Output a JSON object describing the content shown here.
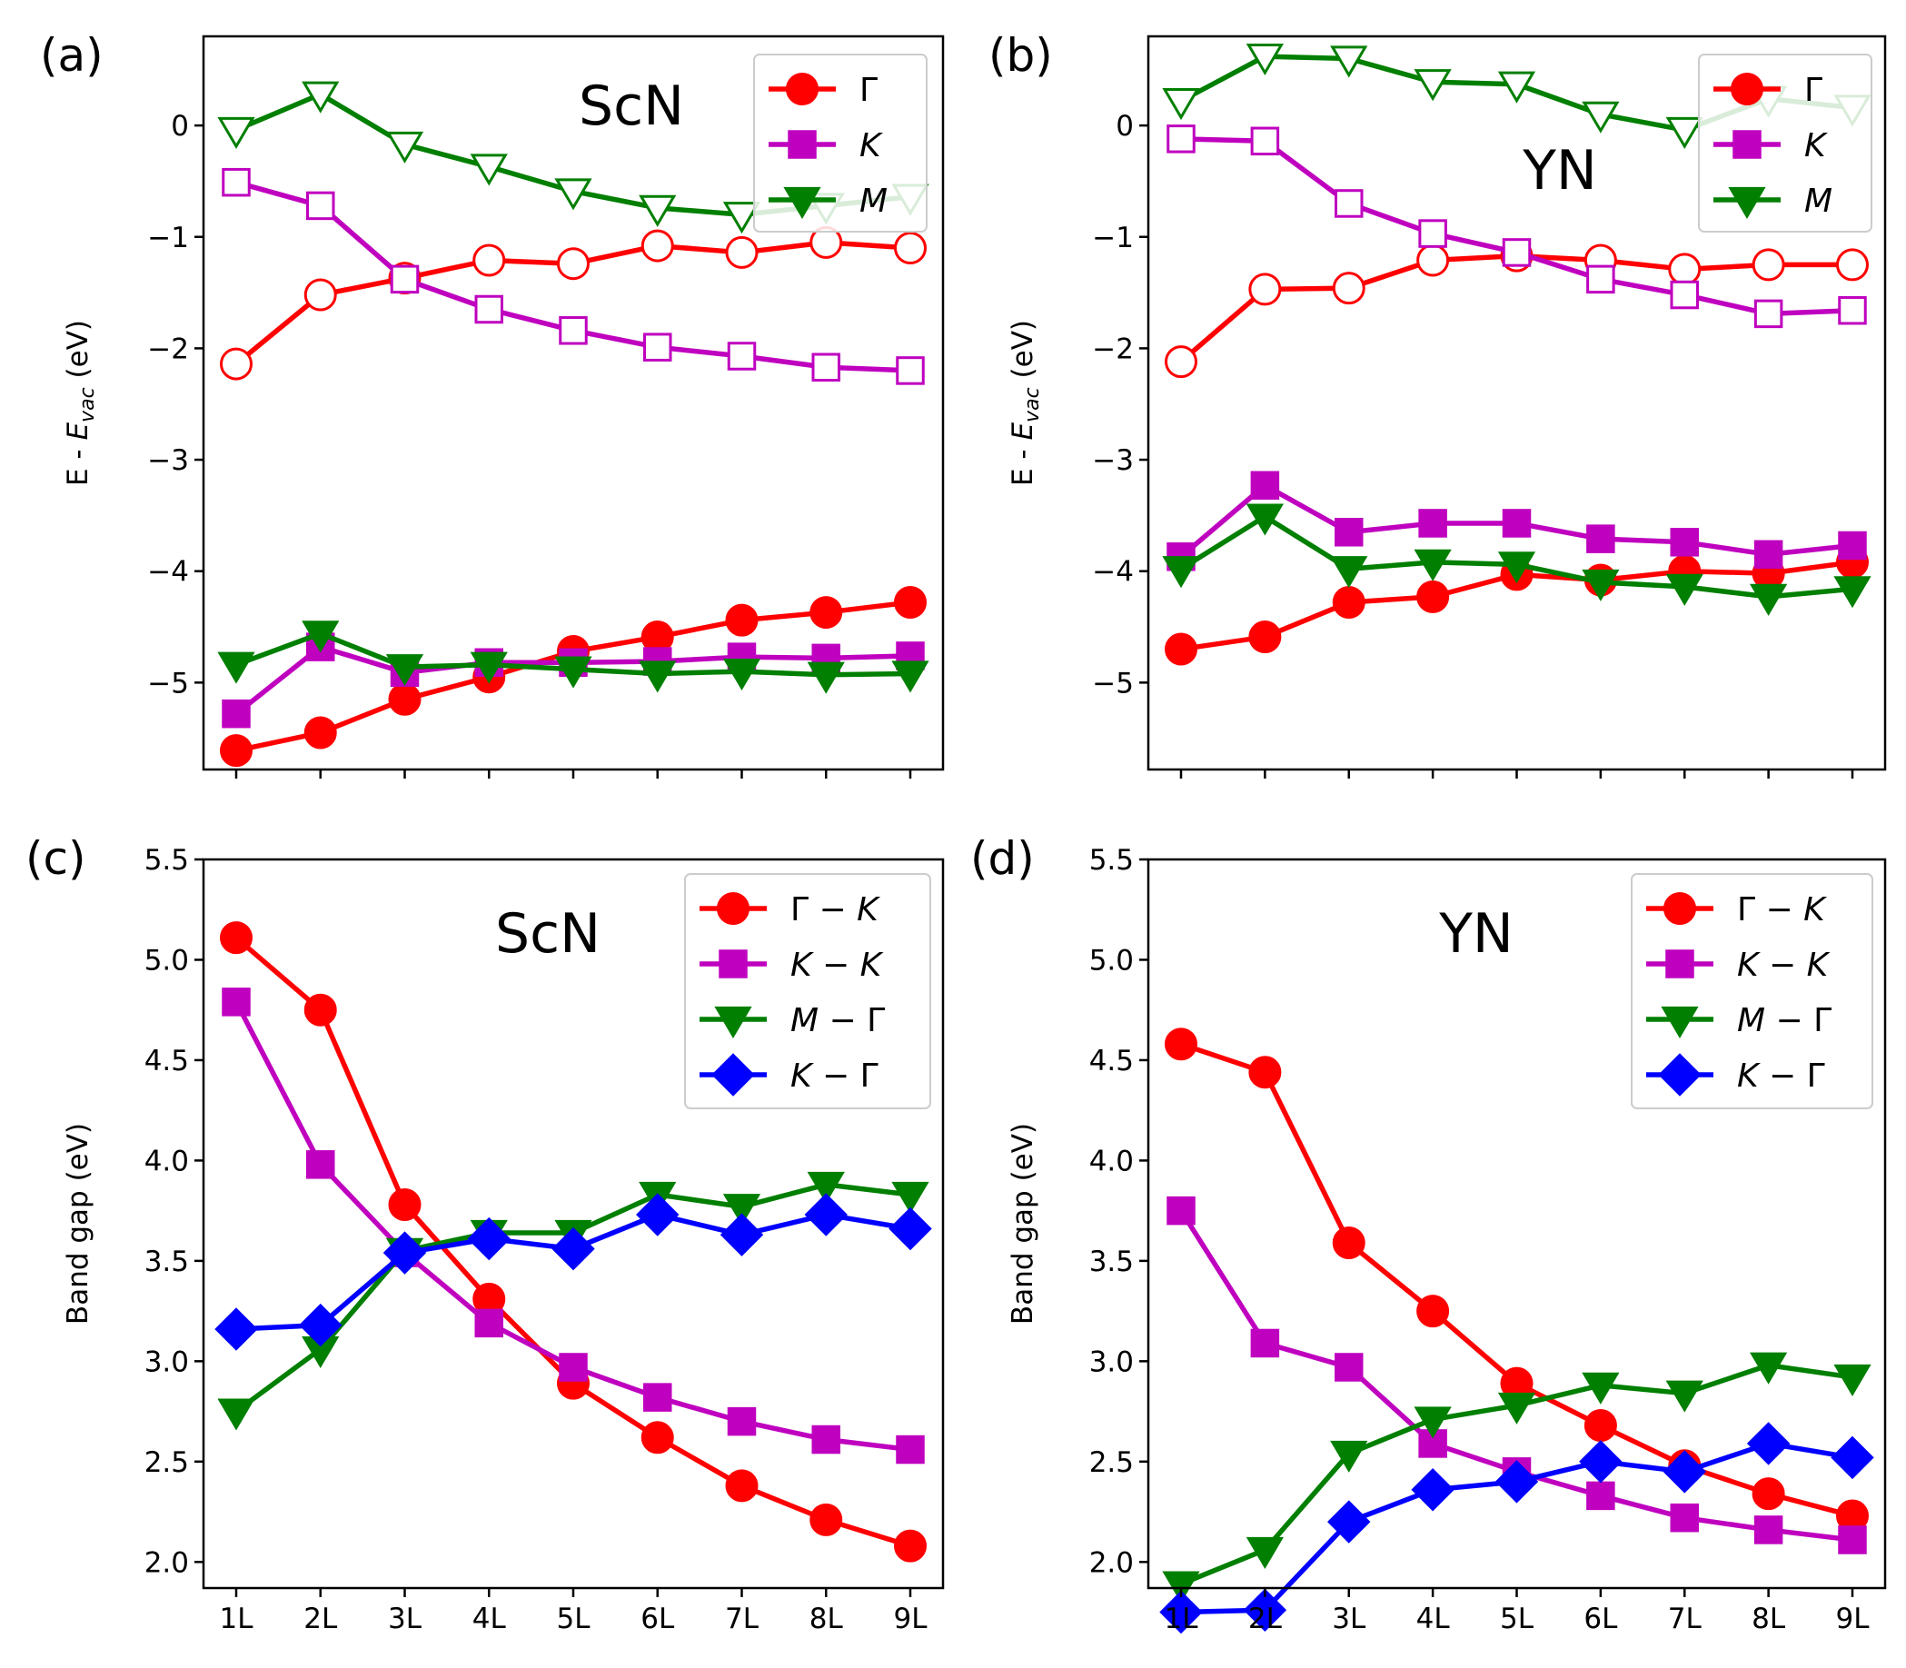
{
  "colors": {
    "red": "#ff0000",
    "magenta": "#bf00bf",
    "green": "#007f00",
    "blue": "#0000ff"
  },
  "chart_data": [
    {
      "panel": "(a)",
      "title": "ScN",
      "type": "line",
      "ylabel": "E - E_vac (eV)",
      "ylabel_main": "E - ",
      "ylabel_italic": "E",
      "ylabel_sub": "vac",
      "ylabel_unit": " (eV)",
      "ylim": [
        -5.78,
        0.8
      ],
      "yticks": [
        0,
        -1,
        -2,
        -3,
        -4,
        -5
      ],
      "ytick_labels": [
        "0",
        "−1",
        "−2",
        "−3",
        "−4",
        "−5"
      ],
      "categories": [
        "1L",
        "2L",
        "3L",
        "4L",
        "5L",
        "6L",
        "7L",
        "8L",
        "9L"
      ],
      "show_xtick_labels": false,
      "legend": [
        {
          "label": "Γ",
          "color": "red",
          "marker": "circle",
          "italic": false
        },
        {
          "label": "K",
          "color": "magenta",
          "marker": "square",
          "italic": true
        },
        {
          "label": "M",
          "color": "green",
          "marker": "triangle-down",
          "italic": true
        }
      ],
      "series": [
        {
          "name": "Γ (upper)",
          "color": "red",
          "marker": "circle",
          "fill": "none",
          "values": [
            -2.14,
            -1.52,
            -1.37,
            -1.21,
            -1.24,
            -1.08,
            -1.14,
            -1.05,
            -1.1
          ]
        },
        {
          "name": "K (upper)",
          "color": "magenta",
          "marker": "square",
          "fill": "none",
          "values": [
            -0.51,
            -0.72,
            -1.38,
            -1.65,
            -1.84,
            -1.99,
            -2.07,
            -2.17,
            -2.2
          ]
        },
        {
          "name": "M (upper)",
          "color": "green",
          "marker": "triangle-down",
          "fill": "none",
          "values": [
            -0.04,
            0.28,
            -0.17,
            -0.37,
            -0.59,
            -0.74,
            -0.8,
            -0.72,
            -0.64
          ]
        },
        {
          "name": "Γ (lower)",
          "color": "red",
          "marker": "circle",
          "fill": "solid",
          "values": [
            -5.61,
            -5.45,
            -5.15,
            -4.95,
            -4.72,
            -4.59,
            -4.44,
            -4.37,
            -4.28
          ]
        },
        {
          "name": "K (lower)",
          "color": "magenta",
          "marker": "square",
          "fill": "solid",
          "values": [
            -5.28,
            -4.68,
            -4.91,
            -4.82,
            -4.82,
            -4.81,
            -4.77,
            -4.78,
            -4.76
          ]
        },
        {
          "name": "M (lower)",
          "color": "green",
          "marker": "triangle-down",
          "fill": "solid",
          "values": [
            -4.84,
            -4.56,
            -4.86,
            -4.84,
            -4.88,
            -4.92,
            -4.9,
            -4.93,
            -4.92
          ]
        }
      ]
    },
    {
      "panel": "(b)",
      "title": "YN",
      "type": "line",
      "ylabel": "E - E_vac (eV)",
      "ylabel_main": "E - ",
      "ylabel_italic": "E",
      "ylabel_sub": "vac",
      "ylabel_unit": " (eV)",
      "ylim": [
        -5.78,
        0.8
      ],
      "yticks": [
        0,
        -1,
        -2,
        -3,
        -4,
        -5
      ],
      "ytick_labels": [
        "0",
        "−1",
        "−2",
        "−3",
        "−4",
        "−5"
      ],
      "categories": [
        "1L",
        "2L",
        "3L",
        "4L",
        "5L",
        "6L",
        "7L",
        "8L",
        "9L"
      ],
      "show_xtick_labels": false,
      "legend": [
        {
          "label": "Γ",
          "color": "red",
          "marker": "circle",
          "italic": false
        },
        {
          "label": "K",
          "color": "magenta",
          "marker": "square",
          "italic": true
        },
        {
          "label": "M",
          "color": "green",
          "marker": "triangle-down",
          "italic": true
        }
      ],
      "series": [
        {
          "name": "Γ (upper)",
          "color": "red",
          "marker": "circle",
          "fill": "none",
          "values": [
            -2.12,
            -1.47,
            -1.46,
            -1.21,
            -1.17,
            -1.21,
            -1.29,
            -1.25,
            -1.25
          ]
        },
        {
          "name": "K (upper)",
          "color": "magenta",
          "marker": "square",
          "fill": "none",
          "values": [
            -0.12,
            -0.14,
            -0.7,
            -0.97,
            -1.14,
            -1.38,
            -1.52,
            -1.69,
            -1.66
          ]
        },
        {
          "name": "M (upper)",
          "color": "green",
          "marker": "triangle-down",
          "fill": "none",
          "values": [
            0.22,
            0.62,
            0.6,
            0.39,
            0.37,
            0.1,
            -0.04,
            0.24,
            0.16
          ]
        },
        {
          "name": "Γ (lower)",
          "color": "red",
          "marker": "circle",
          "fill": "solid",
          "values": [
            -4.7,
            -4.59,
            -4.28,
            -4.23,
            -4.03,
            -4.08,
            -4.0,
            -4.02,
            -3.92
          ]
        },
        {
          "name": "K (lower)",
          "color": "magenta",
          "marker": "square",
          "fill": "solid",
          "values": [
            -3.87,
            -3.23,
            -3.65,
            -3.57,
            -3.57,
            -3.71,
            -3.74,
            -3.85,
            -3.77
          ]
        },
        {
          "name": "M (lower)",
          "color": "green",
          "marker": "triangle-down",
          "fill": "solid",
          "values": [
            -3.98,
            -3.51,
            -3.98,
            -3.92,
            -3.94,
            -4.1,
            -4.14,
            -4.23,
            -4.16
          ]
        }
      ]
    },
    {
      "panel": "(c)",
      "title": "ScN",
      "type": "line",
      "ylabel": "Band gap (eV)",
      "ylim": [
        1.87,
        5.5
      ],
      "yticks": [
        2.0,
        2.5,
        3.0,
        3.5,
        4.0,
        4.5,
        5.0,
        5.5
      ],
      "ytick_labels": [
        "2.0",
        "2.5",
        "3.0",
        "3.5",
        "4.0",
        "4.5",
        "5.0",
        "5.5"
      ],
      "categories": [
        "1L",
        "2L",
        "3L",
        "4L",
        "5L",
        "6L",
        "7L",
        "8L",
        "9L"
      ],
      "show_xtick_labels": true,
      "legend": [
        {
          "label": "Γ − K",
          "color": "red",
          "marker": "circle",
          "italic": true
        },
        {
          "label": "K − K",
          "color": "magenta",
          "marker": "square",
          "italic": true
        },
        {
          "label": "M − Γ",
          "color": "green",
          "marker": "triangle-down",
          "italic": true
        },
        {
          "label": "K − Γ",
          "color": "blue",
          "marker": "diamond",
          "italic": true
        }
      ],
      "series": [
        {
          "name": "Γ − K",
          "color": "red",
          "marker": "circle",
          "fill": "solid",
          "values": [
            5.11,
            4.75,
            3.78,
            3.31,
            2.89,
            2.62,
            2.38,
            2.21,
            2.08
          ]
        },
        {
          "name": "K − K",
          "color": "magenta",
          "marker": "square",
          "fill": "solid",
          "values": [
            4.79,
            3.98,
            3.54,
            3.19,
            2.97,
            2.82,
            2.7,
            2.61,
            2.56
          ]
        },
        {
          "name": "M − Γ",
          "color": "green",
          "marker": "triangle-down",
          "fill": "solid",
          "values": [
            2.75,
            3.06,
            3.55,
            3.64,
            3.64,
            3.83,
            3.77,
            3.88,
            3.83
          ]
        },
        {
          "name": "K − Γ",
          "color": "blue",
          "marker": "diamond",
          "fill": "solid",
          "values": [
            3.16,
            3.18,
            3.54,
            3.61,
            3.56,
            3.73,
            3.63,
            3.73,
            3.66
          ]
        }
      ]
    },
    {
      "panel": "(d)",
      "title": "YN",
      "type": "line",
      "ylabel": "Band gap (eV)",
      "ylim": [
        1.87,
        5.5
      ],
      "yticks": [
        2.0,
        2.5,
        3.0,
        3.5,
        4.0,
        4.5,
        5.0,
        5.5
      ],
      "ytick_labels": [
        "2.0",
        "2.5",
        "3.0",
        "3.5",
        "4.0",
        "4.5",
        "5.0",
        "5.5"
      ],
      "categories": [
        "1L",
        "2L",
        "3L",
        "4L",
        "5L",
        "6L",
        "7L",
        "8L",
        "9L"
      ],
      "show_xtick_labels": true,
      "legend": [
        {
          "label": "Γ − K",
          "color": "red",
          "marker": "circle",
          "italic": true
        },
        {
          "label": "K − K",
          "color": "magenta",
          "marker": "square",
          "italic": true
        },
        {
          "label": "M − Γ",
          "color": "green",
          "marker": "triangle-down",
          "italic": true
        },
        {
          "label": "K − Γ",
          "color": "blue",
          "marker": "diamond",
          "italic": true
        }
      ],
      "series": [
        {
          "name": "Γ − K",
          "color": "red",
          "marker": "circle",
          "fill": "solid",
          "values": [
            4.58,
            4.44,
            3.59,
            3.25,
            2.89,
            2.68,
            2.48,
            2.34,
            2.23
          ]
        },
        {
          "name": "K − K",
          "color": "magenta",
          "marker": "square",
          "fill": "solid",
          "values": [
            3.75,
            3.09,
            2.97,
            2.59,
            2.45,
            2.33,
            2.22,
            2.16,
            2.11
          ]
        },
        {
          "name": "M − Γ",
          "color": "green",
          "marker": "triangle-down",
          "fill": "solid",
          "values": [
            1.89,
            2.06,
            2.54,
            2.71,
            2.78,
            2.88,
            2.84,
            2.98,
            2.92
          ]
        },
        {
          "name": "K − Γ",
          "color": "blue",
          "marker": "diamond",
          "fill": "solid",
          "values": [
            1.75,
            1.76,
            2.2,
            2.36,
            2.4,
            2.5,
            2.45,
            2.59,
            2.52
          ]
        }
      ]
    }
  ]
}
